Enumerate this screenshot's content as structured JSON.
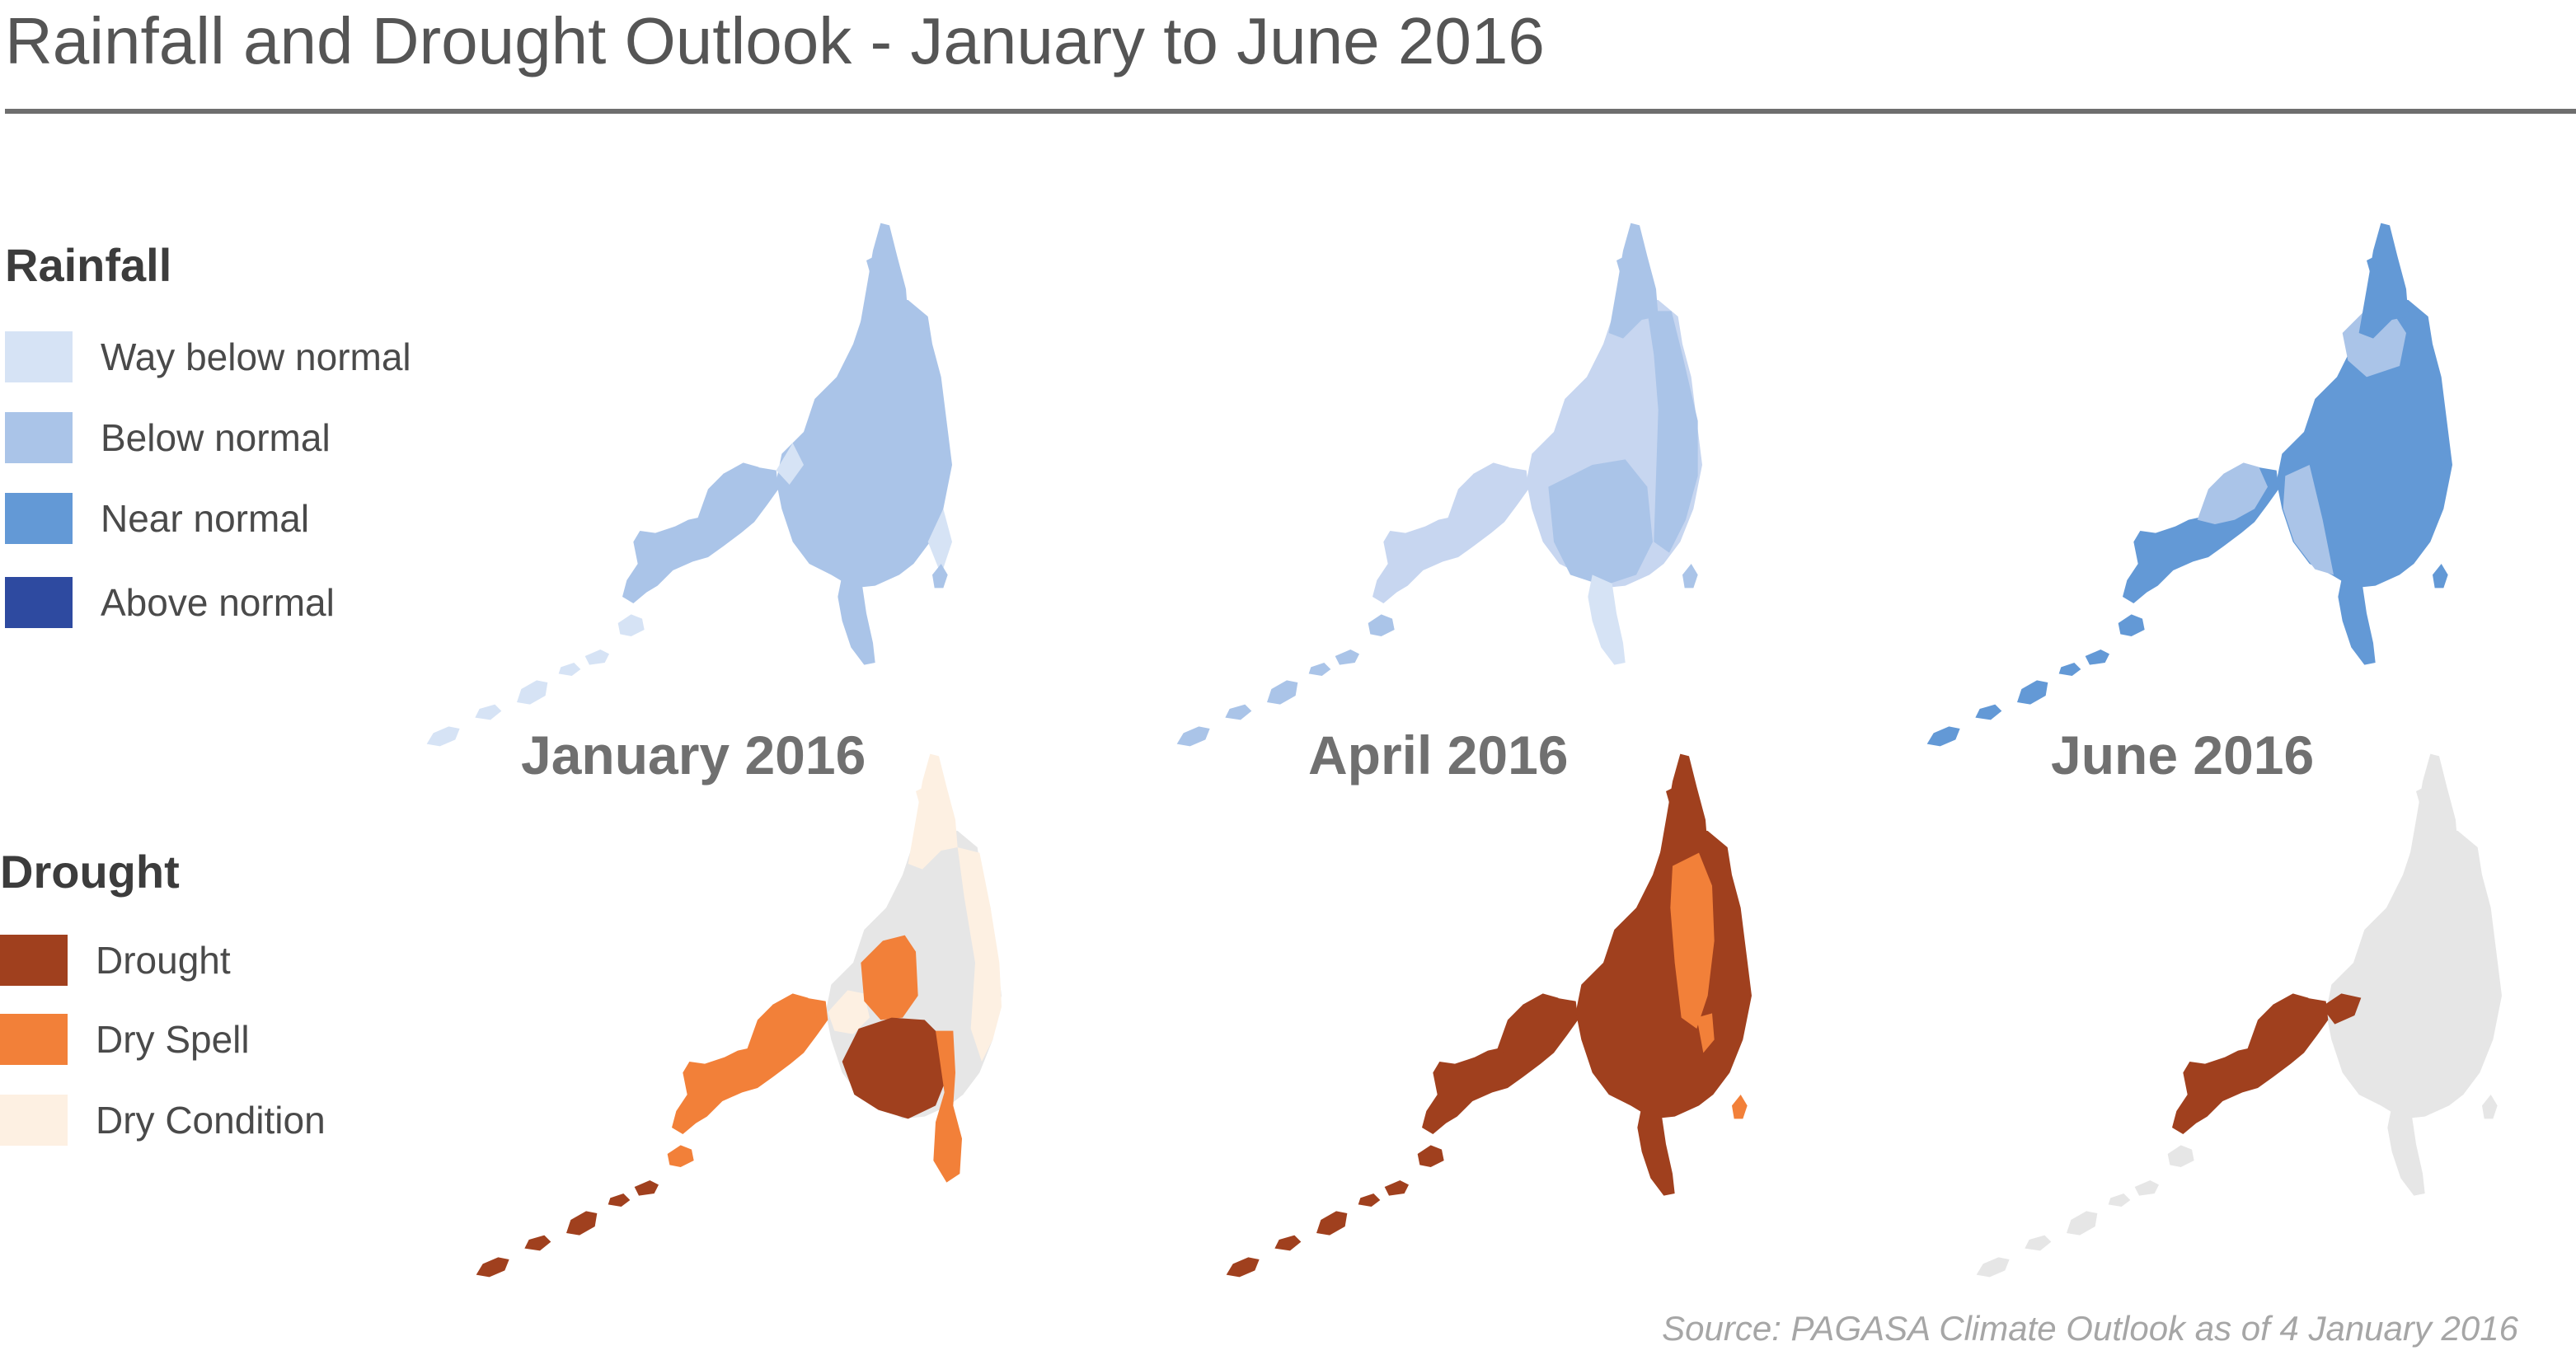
{
  "title": "Rainfall and Drought Outlook - January to June 2016",
  "legend": {
    "rainfall": {
      "heading": "Rainfall",
      "items": [
        {
          "label": "Way below normal",
          "color": "#d6e3f5"
        },
        {
          "label": "Below normal",
          "color": "#aac4e8"
        },
        {
          "label": "Near normal",
          "color": "#6399d6"
        },
        {
          "label": "Above normal",
          "color": "#2e4aa0"
        }
      ]
    },
    "drought": {
      "heading": "Drought",
      "items": [
        {
          "label": "Drought",
          "color": "#a0401e"
        },
        {
          "label": "Dry Spell",
          "color": "#f28039"
        },
        {
          "label": "Dry Condition",
          "color": "#fdf0e2"
        }
      ]
    }
  },
  "colors": {
    "no_data": "#e6e6e6"
  },
  "periods": [
    {
      "label": "January 2016",
      "rainfall": {
        "mainland": "Below normal",
        "northwest_patch": "Way below normal",
        "southeast_coast": "Way below normal",
        "east_islands": "Below normal",
        "islands": "Way below normal"
      },
      "drought": {
        "west": "Dry Spell",
        "central_north": "Dry Spell",
        "central_south": "Drought",
        "southeast": "Dry Spell",
        "east_coast": "Dry Condition",
        "north_interior": "No data",
        "islands": "Drought"
      }
    },
    {
      "label": "April 2016",
      "rainfall": {
        "west": "Way below normal",
        "central": "Below normal",
        "east": "Below normal",
        "south_tip": "Way below normal",
        "islands": "Below normal"
      },
      "drought": {
        "mainland": "Drought",
        "north_east": "Dry Spell",
        "islands": "Drought"
      }
    },
    {
      "label": "June 2016",
      "rainfall": {
        "west": "Near normal",
        "center": "Near normal",
        "north": "Below normal",
        "south_west": "Below normal",
        "east": "Near normal",
        "islands": "Near normal"
      },
      "drought": {
        "west": "Drought",
        "remainder": "No data"
      }
    }
  ],
  "source": "Source: PAGASA Climate Outlook as of 4 January 2016"
}
